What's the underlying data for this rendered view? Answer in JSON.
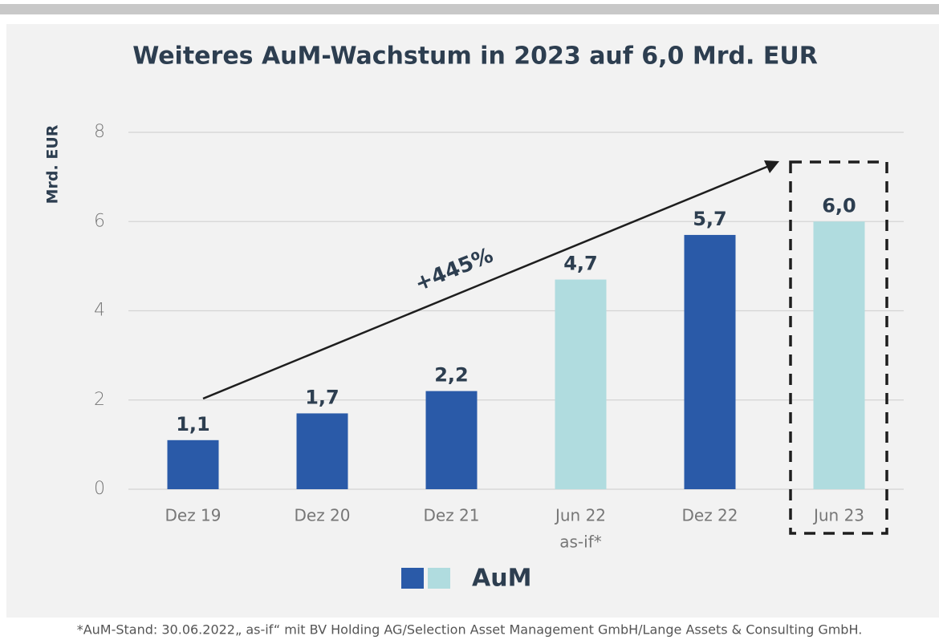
{
  "chart_data": {
    "type": "bar",
    "title": "Weiteres AuM-Wachstum in 2023 auf 6,0 Mrd. EUR",
    "y_label": "Mrd. EUR",
    "categories": [
      "Dez 19",
      "Dez 20",
      "Dez 21",
      "Jun 22",
      "Dez 22",
      "Jun 23"
    ],
    "category_sublabels": [
      null,
      null,
      null,
      "as-if*",
      null,
      null
    ],
    "series": [
      {
        "name": "AuM",
        "values": [
          1.1,
          1.7,
          2.2,
          4.7,
          5.7,
          6.0
        ],
        "value_labels": [
          "1,1",
          "1,7",
          "2,2",
          "4,7",
          "5,7",
          "6,0"
        ],
        "colors": [
          "#2a5aa8",
          "#2a5aa8",
          "#2a5aa8",
          "#b0dcdf",
          "#2a5aa8",
          "#b0dcdf"
        ]
      }
    ],
    "legend_colors": [
      "#2a5aa8",
      "#b0dcdf"
    ],
    "ylim": [
      0,
      8
    ],
    "yticks": [
      0,
      2,
      4,
      6,
      8
    ],
    "grid": true,
    "annotation": "+445%",
    "footnote": "*AuM-Stand: 30.06.2022„ as-if“ mit BV Holding AG/Selection Asset Management GmbH/Lange Assets & Consulting GmbH."
  }
}
